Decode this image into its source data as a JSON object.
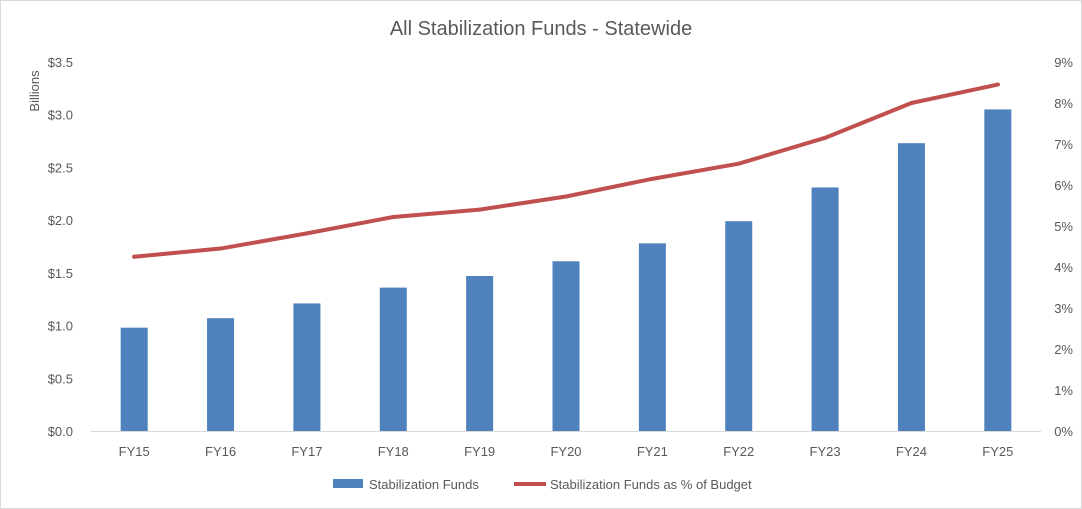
{
  "chart_data": {
    "type": "bar",
    "title": "All Stabilization Funds - Statewide",
    "xlabel": "",
    "ylabel": "Billions",
    "categories": [
      "FY15",
      "FY16",
      "FY17",
      "FY18",
      "FY19",
      "FY20",
      "FY21",
      "FY22",
      "FY23",
      "FY24",
      "FY25"
    ],
    "y_ticks": [
      "$0.0",
      "$0.5",
      "$1.0",
      "$1.5",
      "$2.0",
      "$2.5",
      "$3.0",
      "$3.5"
    ],
    "y2_ticks": [
      "0%",
      "1%",
      "2%",
      "3%",
      "4%",
      "5%",
      "6%",
      "7%",
      "8%",
      "9%"
    ],
    "ylim": [
      0,
      3.5
    ],
    "y2lim": [
      0,
      9
    ],
    "grid": false,
    "legend_position": "bottom",
    "series": [
      {
        "name": "Stabilization Funds",
        "type": "bar",
        "axis": "left",
        "color": "#4f81bd",
        "values": [
          0.98,
          1.07,
          1.21,
          1.36,
          1.47,
          1.61,
          1.78,
          1.99,
          2.31,
          2.73,
          3.05
        ]
      },
      {
        "name": "Stabilization Funds as % of Budget",
        "type": "line",
        "axis": "right",
        "color": "#c0504d",
        "values": [
          4.25,
          4.45,
          4.82,
          5.22,
          5.4,
          5.72,
          6.15,
          6.52,
          7.15,
          8.0,
          8.45
        ]
      }
    ]
  }
}
